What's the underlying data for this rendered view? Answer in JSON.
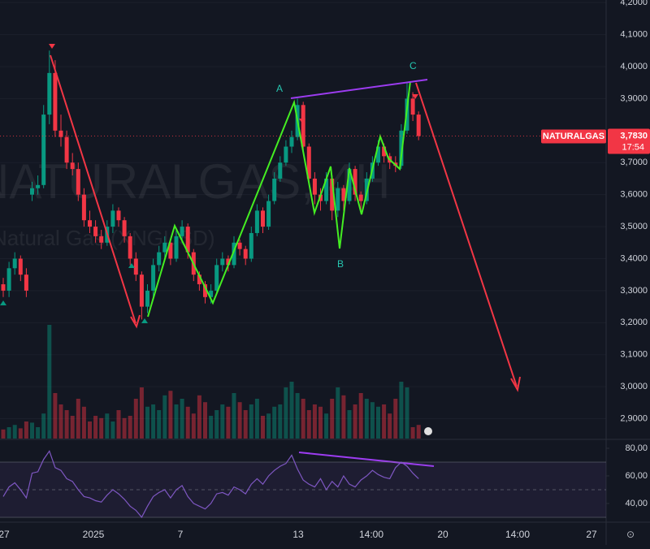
{
  "chart_data": {
    "type": "candlestick",
    "watermark": "NATURALGAS, 4H",
    "watermark_subtitle": "Natural Gas (XNGUSD)",
    "symbol_label": "NATURALGAS",
    "last_price_label": "3,7830",
    "countdown": "17:54",
    "last_price": 3.783,
    "wave_labels": [
      "A",
      "B",
      "C"
    ],
    "up_color": "#089981",
    "down_color": "#f23645",
    "grid": true,
    "ylim": [
      2.838,
      4.208
    ],
    "yticks": [
      {
        "value": 4.2,
        "label": "4,2000"
      },
      {
        "value": 4.1,
        "label": "4,1000"
      },
      {
        "value": 4.0,
        "label": "4,0000"
      },
      {
        "value": 3.9,
        "label": "3,9000"
      },
      {
        "value": 3.7,
        "label": "3,7000"
      },
      {
        "value": 3.6,
        "label": "3,6000"
      },
      {
        "value": 3.5,
        "label": "3,5000"
      },
      {
        "value": 3.4,
        "label": "3,4000"
      },
      {
        "value": 3.3,
        "label": "3,3000"
      },
      {
        "value": 3.2,
        "label": "3,2000"
      },
      {
        "value": 3.1,
        "label": "3,1000"
      },
      {
        "value": 3.0,
        "label": "3,0000"
      },
      {
        "value": 2.9,
        "label": "2,9000"
      }
    ],
    "x_labels": [
      "27",
      "2025",
      "7",
      "13",
      "14:00",
      "20",
      "14:00",
      "27"
    ],
    "ohlc": [
      [
        3.32,
        3.34,
        3.28,
        3.3
      ],
      [
        3.3,
        3.39,
        3.28,
        3.37
      ],
      [
        3.37,
        3.42,
        3.35,
        3.4
      ],
      [
        3.4,
        3.41,
        3.33,
        3.35
      ],
      [
        3.35,
        3.37,
        3.28,
        3.3
      ],
      [
        3.6,
        3.64,
        3.58,
        3.62
      ],
      [
        3.62,
        3.66,
        3.6,
        3.63
      ],
      [
        3.63,
        3.88,
        3.62,
        3.85
      ],
      [
        3.85,
        4.05,
        3.82,
        3.98
      ],
      [
        3.98,
        4.02,
        3.78,
        3.8
      ],
      [
        3.8,
        3.85,
        3.75,
        3.78
      ],
      [
        3.78,
        3.8,
        3.68,
        3.7
      ],
      [
        3.7,
        3.73,
        3.66,
        3.68
      ],
      [
        3.68,
        3.7,
        3.58,
        3.6
      ],
      [
        3.6,
        3.62,
        3.5,
        3.52
      ],
      [
        3.52,
        3.55,
        3.48,
        3.5
      ],
      [
        3.5,
        3.52,
        3.45,
        3.47
      ],
      [
        3.47,
        3.49,
        3.43,
        3.45
      ],
      [
        3.45,
        3.52,
        3.44,
        3.5
      ],
      [
        3.5,
        3.57,
        3.48,
        3.55
      ],
      [
        3.55,
        3.56,
        3.5,
        3.52
      ],
      [
        3.52,
        3.53,
        3.45,
        3.47
      ],
      [
        3.47,
        3.48,
        3.38,
        3.4
      ],
      [
        3.4,
        3.42,
        3.33,
        3.35
      ],
      [
        3.35,
        3.36,
        3.21,
        3.25
      ],
      [
        3.25,
        3.32,
        3.23,
        3.3
      ],
      [
        3.3,
        3.4,
        3.28,
        3.38
      ],
      [
        3.38,
        3.44,
        3.36,
        3.42
      ],
      [
        3.42,
        3.47,
        3.4,
        3.45
      ],
      [
        3.45,
        3.46,
        3.38,
        3.4
      ],
      [
        3.4,
        3.49,
        3.39,
        3.47
      ],
      [
        3.47,
        3.52,
        3.45,
        3.5
      ],
      [
        3.5,
        3.51,
        3.4,
        3.42
      ],
      [
        3.42,
        3.43,
        3.33,
        3.35
      ],
      [
        3.35,
        3.36,
        3.3,
        3.32
      ],
      [
        3.32,
        3.33,
        3.26,
        3.28
      ],
      [
        3.28,
        3.32,
        3.26,
        3.3
      ],
      [
        3.3,
        3.4,
        3.29,
        3.38
      ],
      [
        3.38,
        3.42,
        3.36,
        3.4
      ],
      [
        3.4,
        3.41,
        3.36,
        3.38
      ],
      [
        3.38,
        3.47,
        3.37,
        3.45
      ],
      [
        3.45,
        3.46,
        3.41,
        3.43
      ],
      [
        3.43,
        3.44,
        3.38,
        3.4
      ],
      [
        3.4,
        3.5,
        3.39,
        3.48
      ],
      [
        3.48,
        3.57,
        3.47,
        3.55
      ],
      [
        3.55,
        3.56,
        3.48,
        3.5
      ],
      [
        3.5,
        3.6,
        3.49,
        3.58
      ],
      [
        3.58,
        3.67,
        3.57,
        3.65
      ],
      [
        3.65,
        3.72,
        3.64,
        3.7
      ],
      [
        3.7,
        3.77,
        3.69,
        3.75
      ],
      [
        3.75,
        3.8,
        3.73,
        3.78
      ],
      [
        3.78,
        3.9,
        3.77,
        3.88
      ],
      [
        3.88,
        3.89,
        3.73,
        3.75
      ],
      [
        3.75,
        3.76,
        3.63,
        3.65
      ],
      [
        3.65,
        3.67,
        3.57,
        3.6
      ],
      [
        3.6,
        3.62,
        3.55,
        3.58
      ],
      [
        3.58,
        3.67,
        3.57,
        3.65
      ],
      [
        3.65,
        3.66,
        3.52,
        3.55
      ],
      [
        3.55,
        3.64,
        3.53,
        3.62
      ],
      [
        3.62,
        3.63,
        3.55,
        3.58
      ],
      [
        3.58,
        3.7,
        3.57,
        3.68
      ],
      [
        3.68,
        3.69,
        3.58,
        3.6
      ],
      [
        3.6,
        3.61,
        3.55,
        3.58
      ],
      [
        3.58,
        3.67,
        3.57,
        3.65
      ],
      [
        3.65,
        3.72,
        3.64,
        3.7
      ],
      [
        3.7,
        3.77,
        3.69,
        3.75
      ],
      [
        3.75,
        3.76,
        3.7,
        3.72
      ],
      [
        3.72,
        3.73,
        3.68,
        3.7
      ],
      [
        3.7,
        3.72,
        3.67,
        3.69
      ],
      [
        3.69,
        3.82,
        3.68,
        3.8
      ],
      [
        3.8,
        3.95,
        3.79,
        3.9
      ],
      [
        3.9,
        3.92,
        3.83,
        3.85
      ],
      [
        3.85,
        3.86,
        3.77,
        3.783
      ]
    ],
    "volume": [
      8,
      10,
      12,
      9,
      15,
      14,
      10,
      22,
      100,
      40,
      30,
      25,
      20,
      35,
      28,
      15,
      20,
      18,
      22,
      15,
      25,
      18,
      20,
      35,
      45,
      28,
      30,
      25,
      38,
      42,
      30,
      35,
      28,
      22,
      38,
      32,
      20,
      25,
      30,
      28,
      40,
      32,
      25,
      30,
      35,
      20,
      22,
      28,
      30,
      45,
      50,
      40,
      35,
      25,
      30,
      28,
      22,
      35,
      45,
      38,
      25,
      30,
      40,
      35,
      32,
      28,
      30,
      22,
      35,
      50,
      45,
      10,
      12
    ],
    "rsi": [
      45,
      52,
      55,
      50,
      44,
      62,
      63,
      72,
      78,
      66,
      64,
      58,
      56,
      50,
      45,
      44,
      42,
      41,
      46,
      50,
      47,
      43,
      38,
      35,
      30,
      38,
      45,
      48,
      50,
      44,
      50,
      53,
      45,
      40,
      38,
      36,
      40,
      47,
      48,
      46,
      52,
      50,
      47,
      54,
      58,
      54,
      60,
      64,
      67,
      69,
      75,
      65,
      57,
      54,
      52,
      58,
      50,
      56,
      52,
      60,
      54,
      52,
      57,
      60,
      64,
      61,
      59,
      58,
      66,
      70,
      67,
      62,
      58
    ],
    "rsi_color": "#7e57c2",
    "rsi_ylim": [
      28.2,
      84.1
    ],
    "rsi_band": [
      30,
      70
    ],
    "rsi_mid": 50,
    "rsi_yticks": [
      {
        "value": 80,
        "label": "80,00"
      },
      {
        "value": 60,
        "label": "60,00"
      },
      {
        "value": 40,
        "label": "40,00"
      }
    ]
  }
}
